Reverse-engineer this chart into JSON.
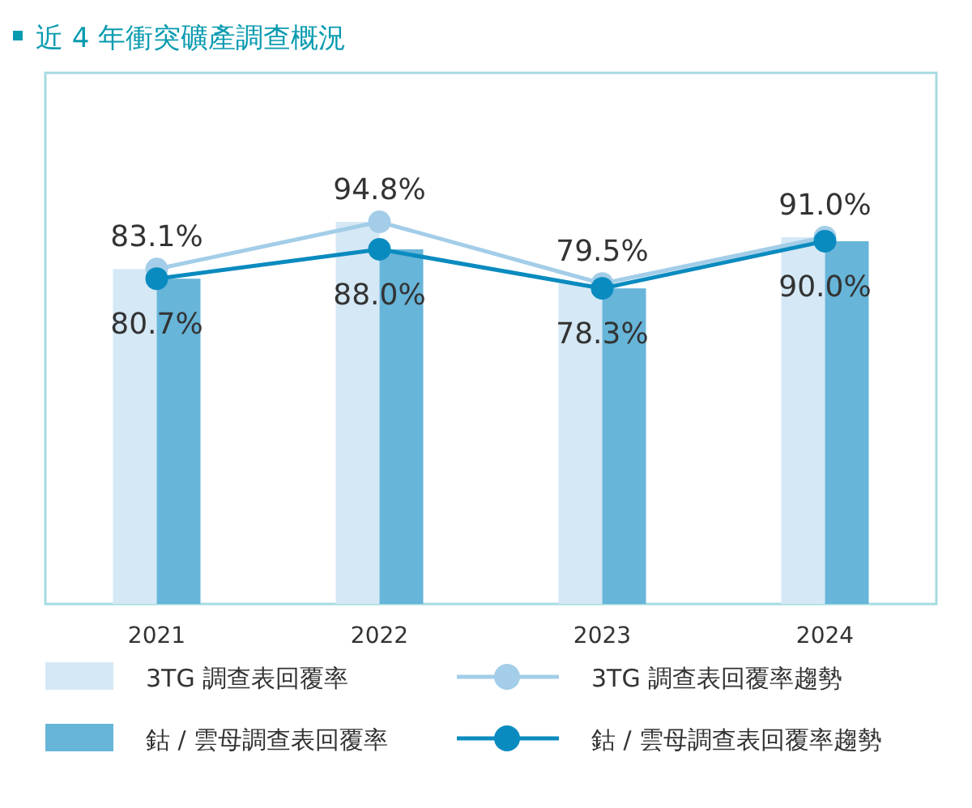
{
  "chart_data": {
    "type": "bar",
    "title": "近 4 年衝突礦產調查概況",
    "categories": [
      "2021",
      "2022",
      "2023",
      "2024"
    ],
    "series": [
      {
        "name": "3TG 調查表回覆率",
        "color": "#d5e8f5",
        "values": [
          83.1,
          94.8,
          79.5,
          91.0
        ]
      },
      {
        "name": "鈷 / 雲母調查表回覆率",
        "color": "#67b5d9",
        "values": [
          80.7,
          88.0,
          78.3,
          90.0
        ]
      },
      {
        "name": "3TG 調查表回覆率趨勢",
        "type": "line",
        "color": "#a3cde8",
        "marker": "circle",
        "values": [
          83.1,
          94.8,
          79.5,
          91.0
        ],
        "value_labels": [
          "83.1%",
          "94.8%",
          "79.5%",
          "91.0%"
        ]
      },
      {
        "name": "鈷 / 雲母調查表回覆率趨勢",
        "type": "line",
        "color": "#0a8bbf",
        "marker": "circle",
        "values": [
          80.7,
          88.0,
          78.3,
          90.0
        ],
        "value_labels": [
          "80.7%",
          "88.0%",
          "78.3%",
          "90.0%"
        ]
      }
    ],
    "tick_labels": "x",
    "grid": false,
    "legend": "bottom"
  }
}
